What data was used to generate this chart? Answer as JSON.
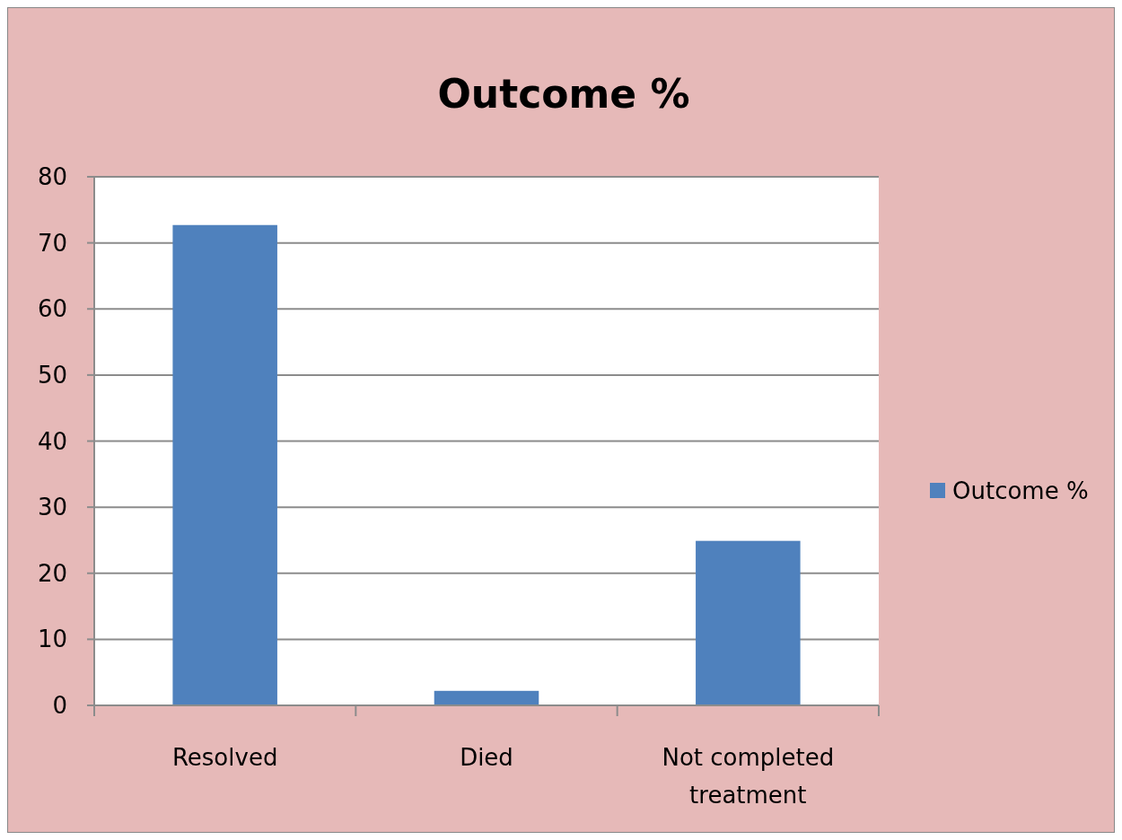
{
  "chart_data": {
    "type": "bar",
    "title": "Outcome %",
    "categories": [
      "Resolved",
      "Died",
      "Not completed treatment"
    ],
    "series": [
      {
        "name": "Outcome %",
        "color": "#4f81bd",
        "values": [
          72.7,
          2.2,
          24.9
        ]
      }
    ],
    "ylim": [
      0,
      80
    ],
    "yticks": [
      0,
      10,
      20,
      30,
      40,
      50,
      60,
      70,
      80
    ],
    "grid": "y",
    "legend": "right"
  }
}
